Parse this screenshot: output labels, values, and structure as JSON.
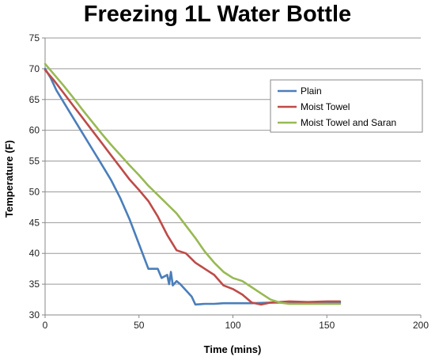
{
  "chart_data": {
    "type": "line",
    "title": "Freezing 1L Water Bottle",
    "xlabel": "Time (mins)",
    "ylabel": "Temperature (F)",
    "xlim": [
      0,
      200
    ],
    "ylim": [
      30,
      75
    ],
    "xticks": [
      0,
      50,
      100,
      150,
      200
    ],
    "yticks": [
      30,
      35,
      40,
      45,
      50,
      55,
      60,
      65,
      70,
      75
    ],
    "grid": "horizontal",
    "legend_position": "upper-right",
    "series": [
      {
        "name": "Plain",
        "color": "#4a7ebb",
        "x": [
          0,
          3,
          6,
          10,
          15,
          20,
          25,
          30,
          35,
          40,
          45,
          50,
          55,
          60,
          62,
          65,
          66,
          67,
          68,
          70,
          72,
          75,
          78,
          80,
          85,
          90,
          95,
          100,
          105,
          110,
          120,
          130,
          140,
          150,
          157
        ],
        "y": [
          70,
          68.5,
          66.5,
          64.5,
          62,
          59.5,
          57,
          54.5,
          52,
          49,
          45.5,
          41.5,
          37.5,
          37.5,
          36,
          36.5,
          35,
          37,
          34.8,
          35.5,
          35,
          34,
          33,
          31.7,
          31.8,
          31.8,
          31.9,
          31.9,
          31.9,
          31.9,
          32,
          32,
          32,
          32,
          32
        ]
      },
      {
        "name": "Moist Towel",
        "color": "#be4b48",
        "x": [
          0,
          5,
          10,
          15,
          20,
          25,
          30,
          35,
          40,
          45,
          50,
          55,
          60,
          65,
          70,
          75,
          80,
          85,
          90,
          95,
          100,
          105,
          110,
          115,
          120,
          130,
          140,
          150,
          157
        ],
        "y": [
          69.8,
          68,
          66,
          64,
          62,
          60,
          58,
          56,
          54,
          52,
          50.3,
          48.5,
          46,
          43,
          40.5,
          40,
          38.5,
          37.5,
          36.5,
          34.8,
          34.2,
          33.3,
          32,
          31.7,
          32,
          32.2,
          32.1,
          32.2,
          32.2
        ]
      },
      {
        "name": "Moist Towel and Saran",
        "color": "#98b954",
        "x": [
          0,
          5,
          10,
          15,
          20,
          25,
          30,
          35,
          40,
          45,
          50,
          55,
          60,
          65,
          70,
          75,
          80,
          85,
          90,
          95,
          100,
          105,
          110,
          115,
          120,
          125,
          130,
          140,
          150,
          157
        ],
        "y": [
          70.8,
          69,
          67.2,
          65.3,
          63.3,
          61.4,
          59.5,
          57.7,
          56,
          54.3,
          52.7,
          51,
          49.5,
          48,
          46.5,
          44.5,
          42.5,
          40.3,
          38.5,
          37,
          36,
          35.5,
          34.5,
          33.5,
          32.5,
          32,
          31.8,
          31.8,
          31.8,
          31.8
        ]
      }
    ]
  }
}
